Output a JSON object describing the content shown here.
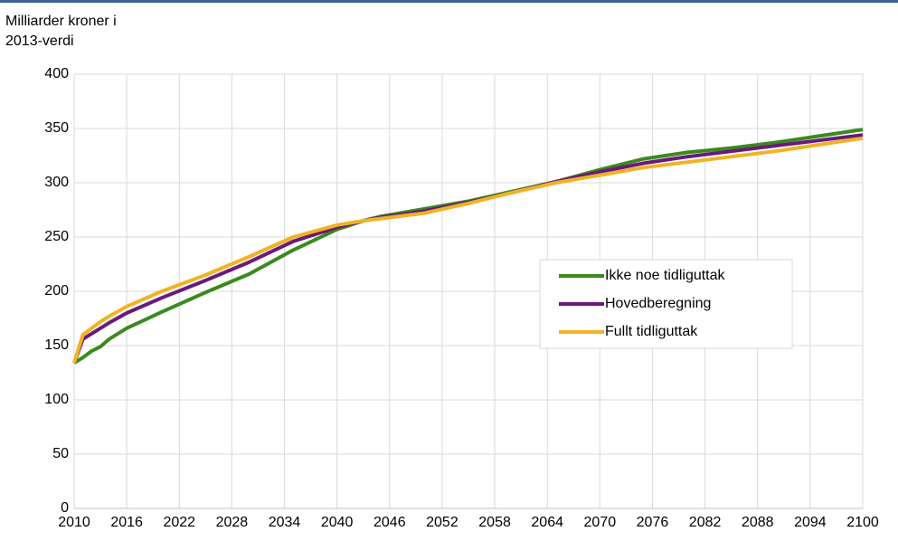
{
  "chart_data": {
    "type": "line",
    "y_label": [
      "Milliarder kroner i",
      "2013-verdi"
    ],
    "x": [
      2010,
      2011,
      2012,
      2013,
      2014,
      2016,
      2020,
      2025,
      2030,
      2035,
      2040,
      2043,
      2045,
      2050,
      2055,
      2060,
      2065,
      2070,
      2075,
      2080,
      2085,
      2090,
      2095,
      2100
    ],
    "series": [
      {
        "name": "Ikke noe tidliguttak",
        "color": "#3a8a1e",
        "values": [
          134,
          139,
          145,
          149,
          156,
          166,
          181,
          199,
          216,
          238,
          257,
          265,
          269,
          276,
          283,
          292,
          301,
          312,
          322,
          328,
          332,
          337,
          343,
          349
        ]
      },
      {
        "name": "Hovedberegning",
        "color": "#6a1a7a",
        "values": [
          134,
          156,
          161,
          166,
          171,
          180,
          194,
          210,
          227,
          246,
          259,
          265,
          268,
          274,
          282,
          291,
          301,
          310,
          318,
          324,
          329,
          334,
          339,
          344
        ]
      },
      {
        "name": "Fullt tidliguttak",
        "color": "#f0b323",
        "values": [
          134,
          160,
          166,
          172,
          177,
          186,
          200,
          215,
          232,
          250,
          261,
          265,
          267,
          272,
          281,
          291,
          300,
          307,
          314,
          319,
          324,
          329,
          335,
          341
        ]
      }
    ],
    "xlim": [
      2010,
      2100
    ],
    "xticks": [
      2010,
      2016,
      2022,
      2028,
      2034,
      2040,
      2046,
      2052,
      2058,
      2064,
      2070,
      2076,
      2082,
      2088,
      2094,
      2100
    ],
    "ylim": [
      0,
      400
    ],
    "yticks": [
      0,
      50,
      100,
      150,
      200,
      250,
      300,
      350,
      400
    ],
    "grid": true
  }
}
